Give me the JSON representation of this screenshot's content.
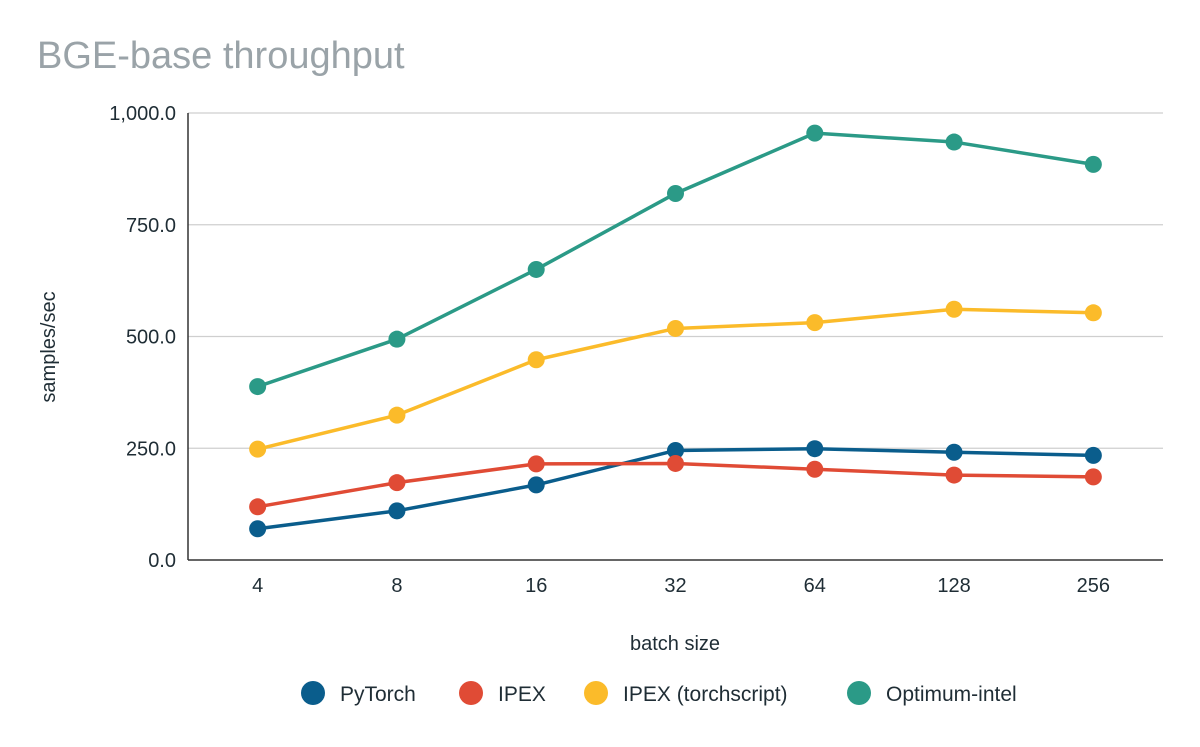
{
  "chart_data": {
    "type": "line",
    "title": "BGE-base throughput",
    "xlabel": "batch size",
    "ylabel": "samples/sec",
    "categories": [
      "4",
      "8",
      "16",
      "32",
      "64",
      "128",
      "256"
    ],
    "ylim": [
      0,
      1000
    ],
    "yticks": [
      {
        "value": 0,
        "label": "0.0"
      },
      {
        "value": 250,
        "label": "250.0"
      },
      {
        "value": 500,
        "label": "500.0"
      },
      {
        "value": 750,
        "label": "750.0"
      },
      {
        "value": 1000,
        "label": "1,000.0"
      }
    ],
    "grid": true,
    "legend_position": "bottom",
    "series": [
      {
        "name": "PyTorch",
        "color": "#0a5d8c",
        "values": [
          70,
          110,
          168,
          245,
          249,
          241,
          234
        ]
      },
      {
        "name": "IPEX",
        "color": "#e04b35",
        "values": [
          119,
          173,
          215,
          216,
          203,
          190,
          186
        ]
      },
      {
        "name": "IPEX (torchscript)",
        "color": "#fbbb2a",
        "values": [
          248,
          324,
          448,
          518,
          531,
          561,
          553
        ]
      },
      {
        "name": "Optimum-intel",
        "color": "#2b9a87",
        "values": [
          388,
          494,
          650,
          820,
          955,
          935,
          885
        ]
      }
    ]
  }
}
